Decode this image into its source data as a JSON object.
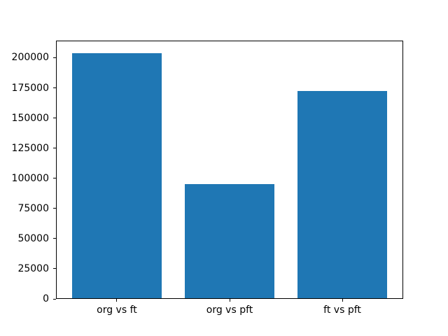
{
  "chart_data": {
    "type": "bar",
    "categories": [
      "org vs ft",
      "org vs pft",
      "ft vs pft"
    ],
    "values": [
      204000,
      95000,
      172500
    ],
    "title": "",
    "xlabel": "",
    "ylabel": "",
    "ylim": [
      0,
      214200
    ],
    "yticks": [
      0,
      25000,
      50000,
      75000,
      100000,
      125000,
      150000,
      175000,
      200000
    ],
    "grid": false,
    "legend": false,
    "bar_color": "#1f77b4",
    "axis_color": "#000000",
    "background_color": "#ffffff"
  }
}
